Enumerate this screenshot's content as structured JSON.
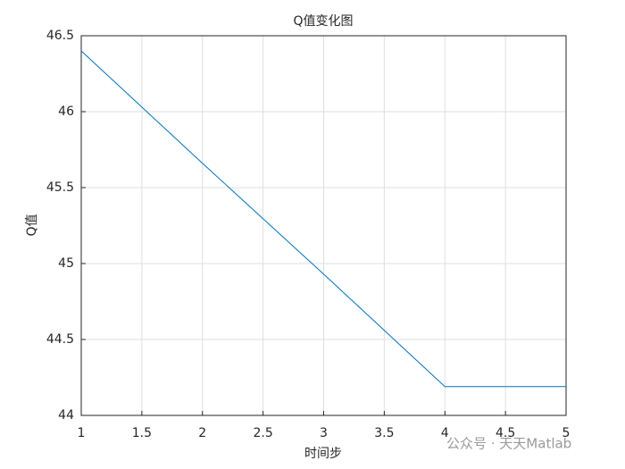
{
  "chart_data": {
    "type": "line",
    "title": "Q值变化图",
    "xlabel": "时间步",
    "ylabel": "Q值",
    "x": [
      1,
      2,
      3,
      4,
      5
    ],
    "series": [
      {
        "name": "Q值",
        "color": "#0072bd",
        "values": [
          46.4,
          45.66,
          44.93,
          44.19,
          44.19
        ]
      }
    ],
    "xlim": [
      1,
      5
    ],
    "xticks": [
      1,
      1.5,
      2,
      2.5,
      3,
      3.5,
      4,
      4.5,
      5
    ],
    "ylim": [
      44,
      46.5
    ],
    "yticks": [
      44,
      44.5,
      45,
      45.5,
      46,
      46.5
    ],
    "grid": true,
    "annotation": "公众号 · 天天Matlab"
  }
}
